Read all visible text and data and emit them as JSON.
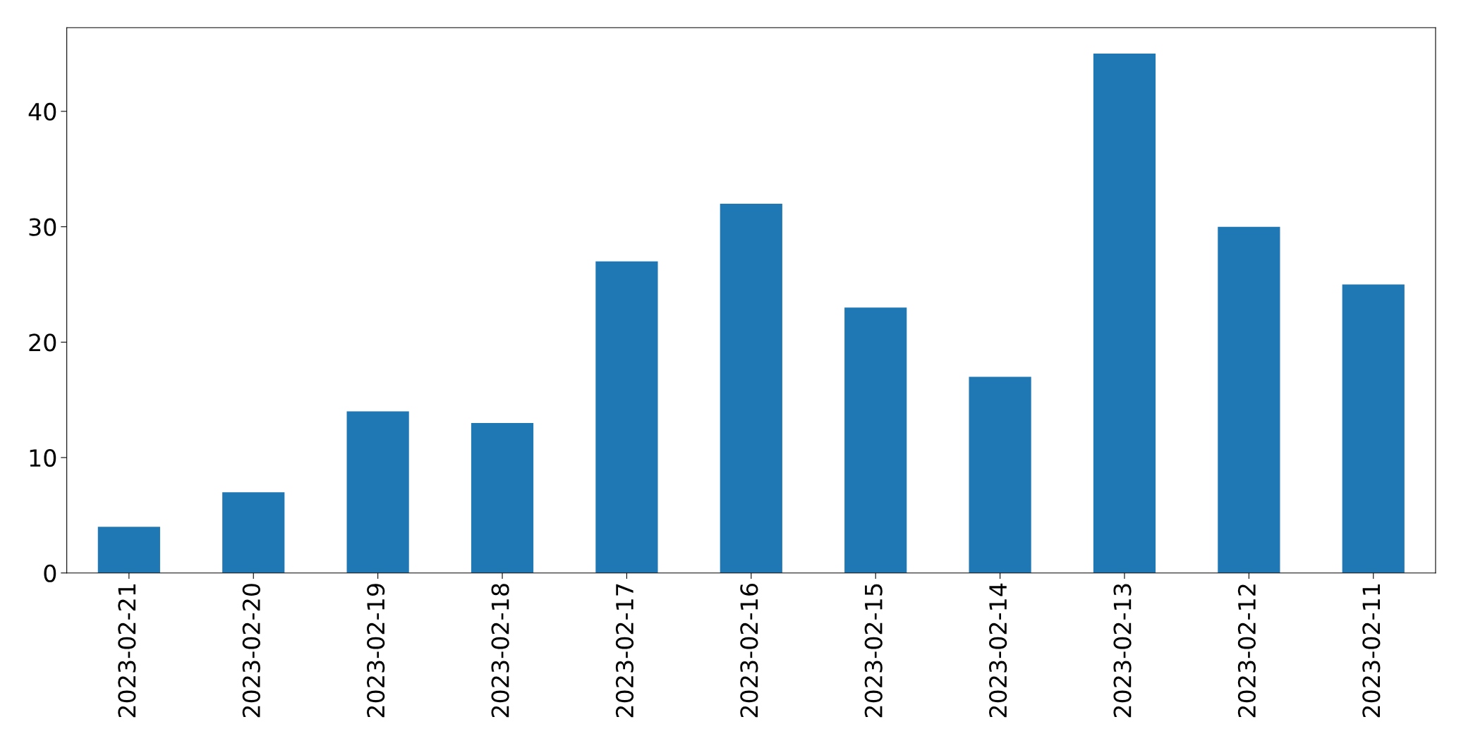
{
  "chart_data": {
    "type": "bar",
    "categories": [
      "2023-02-21",
      "2023-02-20",
      "2023-02-19",
      "2023-02-18",
      "2023-02-17",
      "2023-02-16",
      "2023-02-15",
      "2023-02-14",
      "2023-02-13",
      "2023-02-12",
      "2023-02-11"
    ],
    "values": [
      4,
      7,
      14,
      13,
      27,
      32,
      23,
      17,
      45,
      30,
      25
    ],
    "color": "#1f77b4",
    "ylim": [
      0,
      47.25
    ],
    "yticks": [
      0,
      10,
      20,
      30,
      40
    ],
    "grid": false,
    "legend": false
  }
}
